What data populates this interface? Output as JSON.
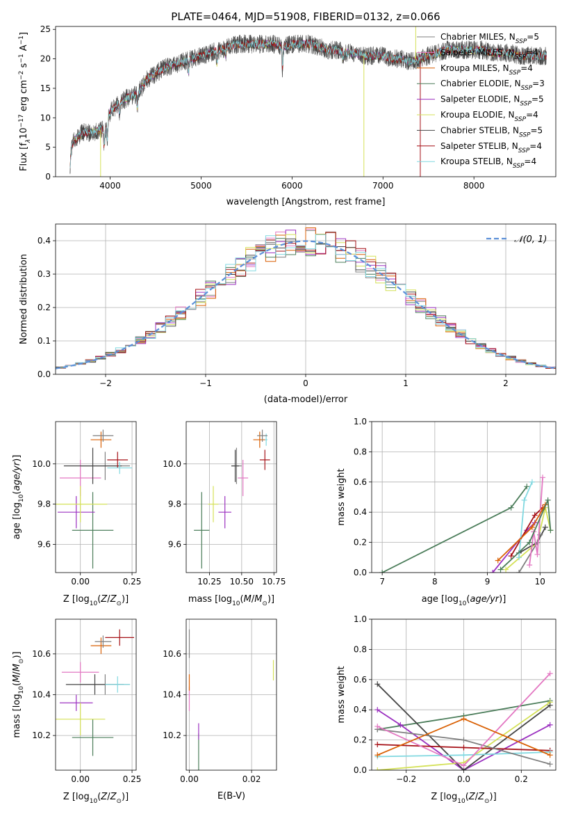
{
  "figure": {
    "title": "PLATE=0464, MJD=51908, FIBERID=0132, z=0.066"
  },
  "series": [
    {
      "name": "Chabrier MILES",
      "nssp": "5",
      "color": "#7f7f7f"
    },
    {
      "name": "Salpeter MILES",
      "nssp": "4",
      "color": "#e377c2"
    },
    {
      "name": "Kroupa MILES",
      "nssp": "4",
      "color": "#d95f02"
    },
    {
      "name": "Chabrier ELODIE",
      "nssp": "3",
      "color": "#4a7c59"
    },
    {
      "name": "Salpeter ELODIE",
      "nssp": "5",
      "color": "#9b30c0"
    },
    {
      "name": "Kroupa ELODIE",
      "nssp": "4",
      "color": "#d4e157"
    },
    {
      "name": "Chabrier STELIB",
      "nssp": "5",
      "color": "#444444"
    },
    {
      "name": "Salpeter STELIB",
      "nssp": "4",
      "color": "#a50f15"
    },
    {
      "name": "Kroupa STELIB",
      "nssp": "4",
      "color": "#80d8e0"
    }
  ],
  "chart_data": [
    {
      "id": "spectrum",
      "type": "line",
      "xlabel": "wavelength [Angstrom, rest frame]",
      "ylabel_prefix": "Flux [f",
      "ylabel_units": "10",
      "ylabel_rest": " erg cm",
      "xlim": [
        3400,
        8900
      ],
      "ylim": [
        0,
        25.5
      ],
      "xticks": [
        4000,
        5000,
        6000,
        7000,
        8000
      ],
      "yticks": [
        0,
        5,
        10,
        15,
        20,
        25
      ],
      "legend": "upper-right",
      "continuum": {
        "x": [
          3560,
          3600,
          3700,
          3800,
          3900,
          3950,
          4000,
          4100,
          4200,
          4300,
          4400,
          4500,
          4600,
          4700,
          4800,
          4900,
          5000,
          5100,
          5200,
          5300,
          5400,
          5500,
          5600,
          5700,
          5800,
          5900,
          6000,
          6100,
          6200,
          6300,
          6400,
          6500,
          6600,
          6700,
          6800,
          6900,
          7000,
          7100,
          7200,
          7300,
          7400,
          7500,
          7600,
          7700,
          7800,
          7900,
          8000,
          8100,
          8200,
          8300,
          8400,
          8500,
          8600,
          8700,
          8800
        ],
        "y": [
          5,
          6,
          7.5,
          7.5,
          8,
          8,
          11,
          12.5,
          13.5,
          14,
          16.5,
          17.5,
          18.5,
          19,
          19.5,
          20,
          20.5,
          21,
          21.5,
          22,
          22.5,
          22.5,
          22.5,
          22.5,
          22.5,
          22,
          22.5,
          22.5,
          22.5,
          22,
          21.5,
          21.5,
          21,
          21,
          20.5,
          20.5,
          20.5,
          20,
          20,
          19.5,
          20,
          20.5,
          21,
          21.5,
          21.5,
          21.5,
          21.5,
          21.5,
          21,
          21,
          21,
          20.5,
          20.5,
          20.5,
          20.5
        ]
      }
    },
    {
      "id": "residuals",
      "type": "step",
      "xlabel": "(data-model)/error",
      "ylabel": "Normed distribution",
      "xlim": [
        -2.5,
        2.5
      ],
      "ylim": [
        0,
        0.45
      ],
      "xticks": [
        -2,
        -1,
        0,
        1,
        2
      ],
      "yticks": [
        0.0,
        0.1,
        0.2,
        0.3,
        0.4
      ],
      "grid": true,
      "legend": "upper-right",
      "normal_label": "𝒩(0, 1)",
      "bin_width": 0.1
    },
    {
      "id": "age-vs-Z",
      "type": "errorbar",
      "xlabel": "Z [log",
      "ylabel": "age  [log",
      "xlim": [
        -0.12,
        0.27
      ],
      "ylim": [
        9.46,
        10.21
      ],
      "xticks": [
        0.0,
        0.25
      ],
      "yticks": [
        9.6,
        9.8,
        10.0
      ],
      "grid": true,
      "points": [
        {
          "x": 0.12,
          "xerr": 0.12,
          "y": 9.99,
          "yerr": 0.07
        },
        {
          "x": 0.0,
          "xerr": 0.1,
          "y": 9.93,
          "yerr": 0.09
        },
        {
          "x": 0.1,
          "xerr": 0.05,
          "y": 10.12,
          "yerr": 0.04
        },
        {
          "x": 0.06,
          "xerr": 0.1,
          "y": 9.67,
          "yerr": 0.19
        },
        {
          "x": -0.02,
          "xerr": 0.09,
          "y": 9.76,
          "yerr": 0.08
        },
        {
          "x": 0.0,
          "xerr": 0.13,
          "y": 9.8,
          "yerr": 0.09
        },
        {
          "x": 0.06,
          "xerr": 0.14,
          "y": 9.99,
          "yerr": 0.09
        },
        {
          "x": 0.18,
          "xerr": 0.05,
          "y": 10.02,
          "yerr": 0.04
        },
        {
          "x": 0.19,
          "xerr": 0.06,
          "y": 9.98,
          "yerr": 0.03
        },
        {
          "x": 0.11,
          "xerr": 0.05,
          "y": 10.14,
          "yerr": 0.03
        }
      ]
    },
    {
      "id": "age-vs-mass",
      "type": "errorbar",
      "xlabel": "mass [log",
      "xlim": [
        10.07,
        10.77
      ],
      "ylim": [
        9.46,
        10.21
      ],
      "xticks": [
        10.25,
        10.5,
        10.75
      ],
      "yticks": [
        9.6,
        9.8,
        10.0
      ],
      "grid": true,
      "points": [
        {
          "x": 10.46,
          "xerr": 0.04,
          "y": 9.99,
          "yerr": 0.09
        },
        {
          "x": 10.51,
          "xerr": 0.04,
          "y": 9.93,
          "yerr": 0.09
        },
        {
          "x": 10.64,
          "xerr": 0.05,
          "y": 10.12,
          "yerr": 0.04
        },
        {
          "x": 10.19,
          "xerr": 0.06,
          "y": 9.67,
          "yerr": 0.19
        },
        {
          "x": 10.37,
          "xerr": 0.05,
          "y": 9.76,
          "yerr": 0.08
        },
        {
          "x": 10.28,
          "xerr": 0.04,
          "y": 9.8,
          "yerr": 0.09
        },
        {
          "x": 10.45,
          "xerr": 0.03,
          "y": 9.99,
          "yerr": 0.08
        },
        {
          "x": 10.68,
          "xerr": 0.04,
          "y": 10.02,
          "yerr": 0.05
        },
        {
          "x": 10.69,
          "xerr": 0.01,
          "y": 10.12,
          "yerr": 0.03
        },
        {
          "x": 10.66,
          "xerr": 0.04,
          "y": 10.14,
          "yerr": 0.03
        }
      ]
    },
    {
      "id": "weight-vs-age",
      "type": "line",
      "xlabel": "age  [log",
      "ylabel": "mass weight",
      "xlim": [
        6.8,
        10.3
      ],
      "ylim": [
        0,
        1.0
      ],
      "xticks": [
        7,
        8,
        9,
        10
      ],
      "yticks": [
        0.0,
        0.2,
        0.4,
        0.6,
        0.8,
        1.0
      ],
      "grid": true,
      "lines": [
        {
          "x": [
            7.0,
            9.45,
            9.75
          ],
          "y": [
            0.0,
            0.43,
            0.57
          ]
        },
        {
          "x": [
            9.1,
            9.75,
            9.9
          ],
          "y": [
            0.0,
            0.28,
            0.33
          ]
        },
        {
          "x": [
            9.35,
            9.95,
            10.1,
            10.2
          ],
          "y": [
            0.02,
            0.2,
            0.43,
            0.28
          ]
        },
        {
          "x": [
            9.6,
            9.95,
            10.1
          ],
          "y": [
            0.13,
            0.2,
            0.3
          ]
        },
        {
          "x": [
            9.45,
            9.9,
            10.05
          ],
          "y": [
            0.11,
            0.38,
            0.43
          ]
        },
        {
          "x": [
            9.6,
            9.7,
            9.85
          ],
          "y": [
            0.1,
            0.48,
            0.6
          ]
        },
        {
          "x": [
            9.6,
            9.95,
            10.0
          ],
          "y": [
            0.0,
            0.2,
            0.25
          ]
        },
        {
          "x": [
            9.8,
            9.88,
            9.95,
            10.05
          ],
          "y": [
            0.05,
            0.27,
            0.12,
            0.63
          ]
        },
        {
          "x": [
            9.2,
            9.85,
            10.05,
            10.1
          ],
          "y": [
            0.08,
            0.3,
            0.42,
            0.45
          ]
        },
        {
          "x": [
            9.25,
            9.8,
            10.15,
            10.2
          ],
          "y": [
            0.02,
            0.2,
            0.48,
            0.28
          ]
        }
      ]
    },
    {
      "id": "mass-vs-Z",
      "type": "errorbar",
      "xlabel": "Z [log",
      "ylabel": "mass [log",
      "xlim": [
        -0.12,
        0.27
      ],
      "ylim": [
        10.03,
        10.77
      ],
      "xticks": [
        0.0,
        0.25
      ],
      "yticks": [
        10.2,
        10.4,
        10.6
      ],
      "grid": true,
      "points": [
        {
          "x": 0.12,
          "xerr": 0.12,
          "y": 10.45,
          "yerr": 0.05
        },
        {
          "x": 0.0,
          "xerr": 0.09,
          "y": 10.51,
          "yerr": 0.05
        },
        {
          "x": 0.1,
          "xerr": 0.05,
          "y": 10.64,
          "yerr": 0.04
        },
        {
          "x": 0.06,
          "xerr": 0.1,
          "y": 10.19,
          "yerr": 0.09
        },
        {
          "x": -0.02,
          "xerr": 0.08,
          "y": 10.36,
          "yerr": 0.04
        },
        {
          "x": 0.0,
          "xerr": 0.12,
          "y": 10.28,
          "yerr": 0.08
        },
        {
          "x": 0.07,
          "xerr": 0.14,
          "y": 10.45,
          "yerr": 0.05
        },
        {
          "x": 0.19,
          "xerr": 0.07,
          "y": 10.68,
          "yerr": 0.04
        },
        {
          "x": 0.18,
          "xerr": 0.06,
          "y": 10.45,
          "yerr": 0.04
        },
        {
          "x": 0.11,
          "xerr": 0.04,
          "y": 10.66,
          "yerr": 0.03
        }
      ]
    },
    {
      "id": "mass-vs-EBV",
      "type": "errorbar",
      "xlabel": "E(B-V)",
      "xlim": [
        -0.001,
        0.028
      ],
      "ylim": [
        10.03,
        10.77
      ],
      "xticks": [
        0.0,
        0.02
      ],
      "yticks": [
        10.2,
        10.4,
        10.6
      ],
      "grid": true,
      "points": [
        {
          "x": 0.0,
          "xerr": 0.0,
          "y": 10.65,
          "yerr": 0.07
        },
        {
          "x": 0.0,
          "xerr": 0.0,
          "y": 10.38,
          "yerr": 0.06
        },
        {
          "x": 0.0,
          "xerr": 0.0,
          "y": 10.46,
          "yerr": 0.04
        },
        {
          "x": 0.003,
          "xerr": 0.0,
          "y": 10.12,
          "yerr": 0.09
        },
        {
          "x": 0.003,
          "xerr": 0.0,
          "y": 10.22,
          "yerr": 0.04
        },
        {
          "x": 0.027,
          "xerr": 0.0,
          "y": 10.52,
          "yerr": 0.05
        }
      ]
    },
    {
      "id": "weight-vs-Z",
      "type": "line",
      "xlabel": "Z [log",
      "ylabel": "mass weight",
      "xlim": [
        -0.32,
        0.32
      ],
      "ylim": [
        0,
        1.0
      ],
      "xticks": [
        -0.2,
        0.0,
        0.2
      ],
      "yticks": [
        0.0,
        0.2,
        0.4,
        0.6,
        0.8,
        1.0
      ],
      "grid": true,
      "lines": [
        {
          "x": [
            -0.3,
            0.0,
            0.3
          ],
          "y": [
            0.27,
            0.36,
            0.46
          ]
        },
        {
          "x": [
            -0.3,
            -0.22,
            0.0,
            0.3
          ],
          "y": [
            0.4,
            0.3,
            0.0,
            0.3
          ]
        },
        {
          "x": [
            -0.3,
            0.0,
            0.3
          ],
          "y": [
            0.0,
            0.05,
            0.45
          ]
        },
        {
          "x": [
            -0.3,
            0.0,
            0.3
          ],
          "y": [
            0.57,
            0.0,
            0.43
          ]
        },
        {
          "x": [
            -0.3,
            0.0,
            0.3
          ],
          "y": [
            0.17,
            0.15,
            0.13
          ]
        },
        {
          "x": [
            -0.3,
            0.0,
            0.3
          ],
          "y": [
            0.09,
            0.1,
            0.12
          ]
        },
        {
          "x": [
            -0.3,
            0.0,
            0.3
          ],
          "y": [
            0.27,
            0.2,
            0.04
          ]
        },
        {
          "x": [
            -0.3,
            0.0,
            0.3
          ],
          "y": [
            0.29,
            0.03,
            0.64
          ]
        },
        {
          "x": [
            -0.3,
            0.0,
            0.3
          ],
          "y": [
            0.1,
            0.34,
            0.1
          ]
        }
      ]
    }
  ]
}
